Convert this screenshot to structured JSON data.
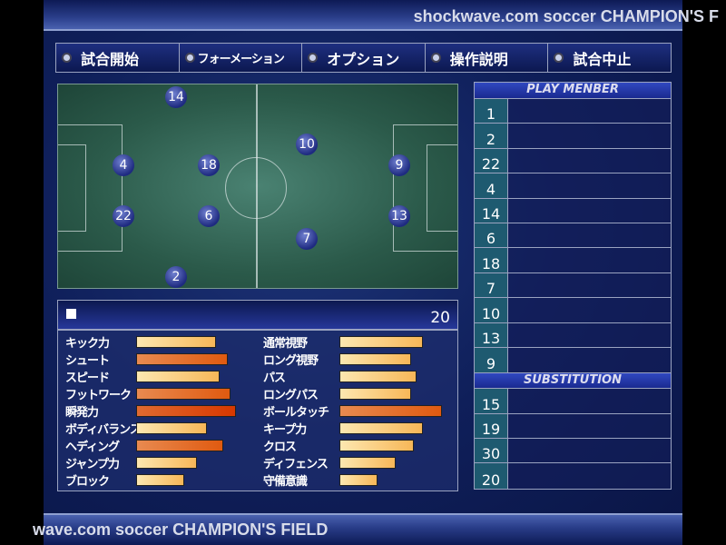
{
  "title": "shockwave.com soccer CHAMPION'S FIELD",
  "title_top_visible": "shockwave.com soccer CHAMPION'S F",
  "title_bottom_visible": "wave.com soccer CHAMPION'S FIELD",
  "menu": [
    "試合開始",
    "フォーメーション",
    "オプション",
    "操作説明",
    "試合中止"
  ],
  "field_players": [
    "14",
    "4",
    "18",
    "10",
    "9",
    "22",
    "6",
    "13",
    "7",
    "2"
  ],
  "stats": {
    "player_number": "20",
    "left": [
      {
        "label": "キック力",
        "level": 78,
        "tone": "light"
      },
      {
        "label": "シュート",
        "level": 89,
        "tone": "dark"
      },
      {
        "label": "スピード",
        "level": 81,
        "tone": "light"
      },
      {
        "label": "フットワーク",
        "level": 92,
        "tone": "dark"
      },
      {
        "label": "瞬発力",
        "level": 97,
        "tone": "max"
      },
      {
        "label": "ボディバランス",
        "level": 69,
        "tone": "light"
      },
      {
        "label": "ヘディング",
        "level": 85,
        "tone": "dark"
      },
      {
        "label": "ジャンプ力",
        "level": 59,
        "tone": "light"
      },
      {
        "label": "ブロック",
        "level": 47,
        "tone": "light"
      }
    ],
    "right": [
      {
        "label": "通常視野",
        "level": 81,
        "tone": "light"
      },
      {
        "label": "ロング視野",
        "level": 70,
        "tone": "light"
      },
      {
        "label": "パス",
        "level": 75,
        "tone": "light"
      },
      {
        "label": "ロングパス",
        "level": 70,
        "tone": "light"
      },
      {
        "label": "ボールタッチ",
        "level": 100,
        "tone": "dark"
      },
      {
        "label": "キープ力",
        "level": 81,
        "tone": "light"
      },
      {
        "label": "クロス",
        "level": 73,
        "tone": "light"
      },
      {
        "label": "ディフェンス",
        "level": 55,
        "tone": "light"
      },
      {
        "label": "守備意識",
        "level": 37,
        "tone": "light"
      }
    ]
  },
  "roster": {
    "play_header": "PLAY MENBER",
    "play": [
      "1",
      "2",
      "22",
      "4",
      "14",
      "6",
      "18",
      "7",
      "10",
      "13",
      "9"
    ],
    "sub_header": "SUBSTITUTION",
    "subs": [
      "15",
      "19",
      "30",
      "20"
    ]
  }
}
